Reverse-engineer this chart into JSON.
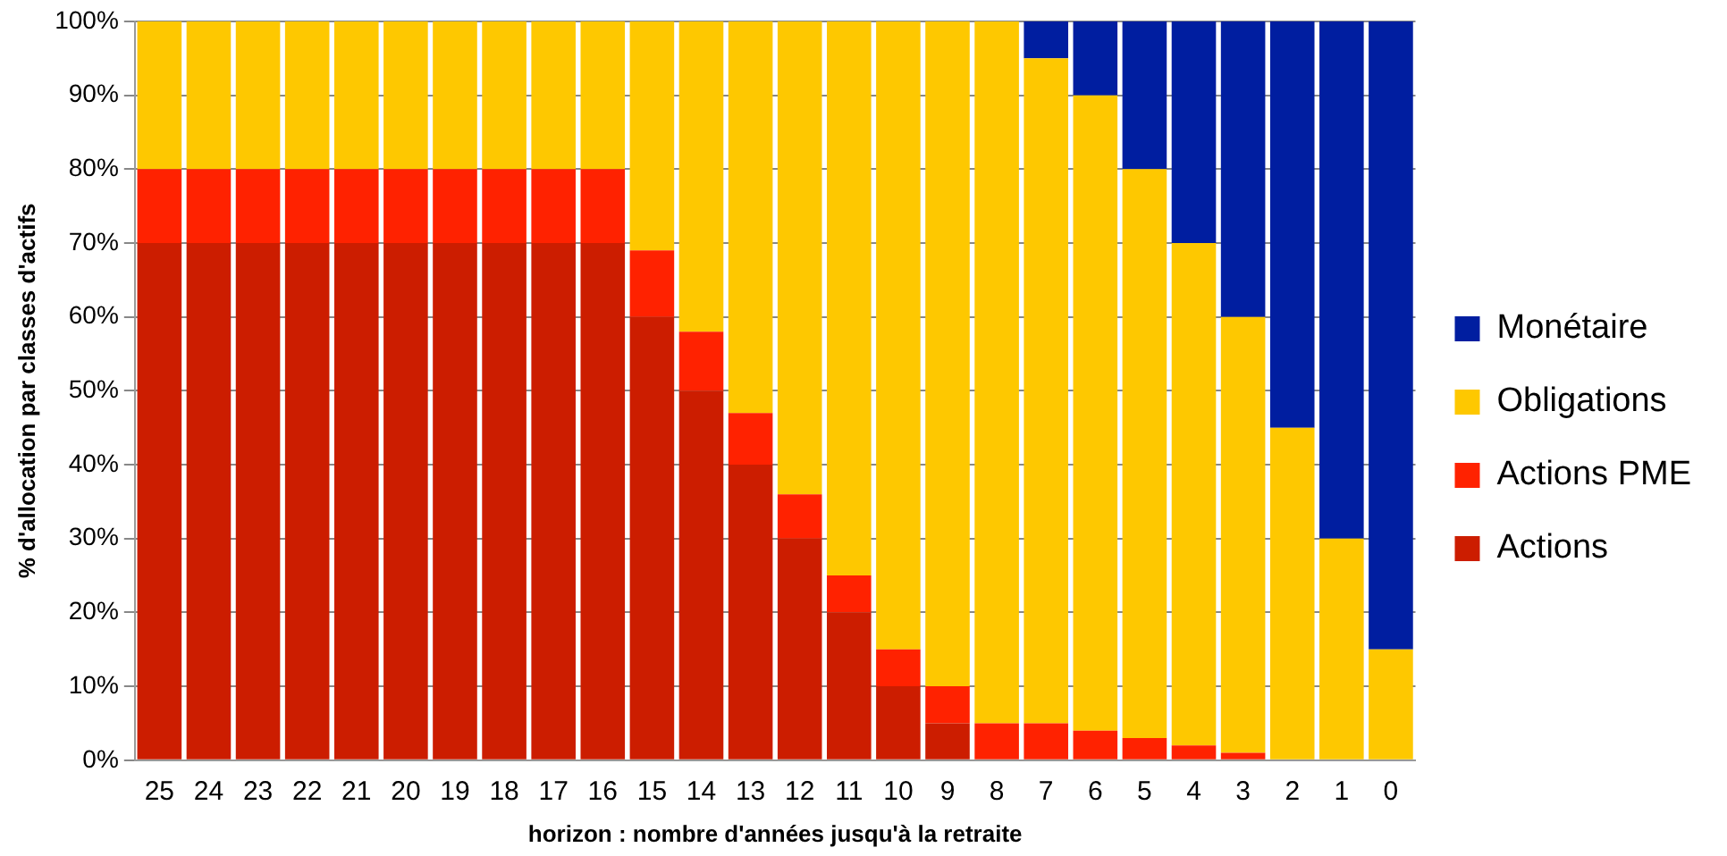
{
  "chart_data": {
    "type": "bar",
    "stacked": true,
    "xlabel": "horizon : nombre d'années jusqu'à la retraite",
    "ylabel": "% d'allocation par classes d'actifs",
    "categories": [
      "25",
      "24",
      "23",
      "22",
      "21",
      "20",
      "19",
      "18",
      "17",
      "16",
      "15",
      "14",
      "13",
      "12",
      "11",
      "10",
      "9",
      "8",
      "7",
      "6",
      "5",
      "4",
      "3",
      "2",
      "1",
      "0"
    ],
    "series": [
      {
        "name": "Actions",
        "color": "#cc1d00",
        "values": [
          70,
          70,
          70,
          70,
          70,
          70,
          70,
          70,
          70,
          70,
          60,
          50,
          40,
          30,
          20,
          10,
          5,
          0,
          0,
          0,
          0,
          0,
          0,
          0,
          0,
          0
        ]
      },
      {
        "name": "Actions PME",
        "color": "#ff2200",
        "values": [
          10,
          10,
          10,
          10,
          10,
          10,
          10,
          10,
          10,
          10,
          9,
          8,
          7,
          6,
          5,
          5,
          5,
          5,
          5,
          4,
          3,
          2,
          1,
          0,
          0,
          0
        ]
      },
      {
        "name": "Obligations",
        "color": "#fec800",
        "values": [
          20,
          20,
          20,
          20,
          20,
          20,
          20,
          20,
          20,
          20,
          31,
          42,
          53,
          64,
          75,
          85,
          90,
          95,
          90,
          86,
          77,
          68,
          59,
          45,
          30,
          15
        ]
      },
      {
        "name": "Monétaire",
        "color": "#001ea0",
        "values": [
          0,
          0,
          0,
          0,
          0,
          0,
          0,
          0,
          0,
          0,
          0,
          0,
          0,
          0,
          0,
          0,
          0,
          0,
          5,
          10,
          20,
          30,
          40,
          55,
          70,
          85
        ]
      }
    ],
    "ylim": [
      0,
      100
    ],
    "yticks": [
      {
        "value": 0,
        "label": "0%"
      },
      {
        "value": 10,
        "label": "10%"
      },
      {
        "value": 20,
        "label": "20%"
      },
      {
        "value": 30,
        "label": "30%"
      },
      {
        "value": 40,
        "label": "40%"
      },
      {
        "value": 50,
        "label": "50%"
      },
      {
        "value": 60,
        "label": "60%"
      },
      {
        "value": 70,
        "label": "70%"
      },
      {
        "value": 80,
        "label": "80%"
      },
      {
        "value": 90,
        "label": "90%"
      },
      {
        "value": 100,
        "label": "100%"
      }
    ],
    "grid": "y",
    "legend": "right"
  }
}
